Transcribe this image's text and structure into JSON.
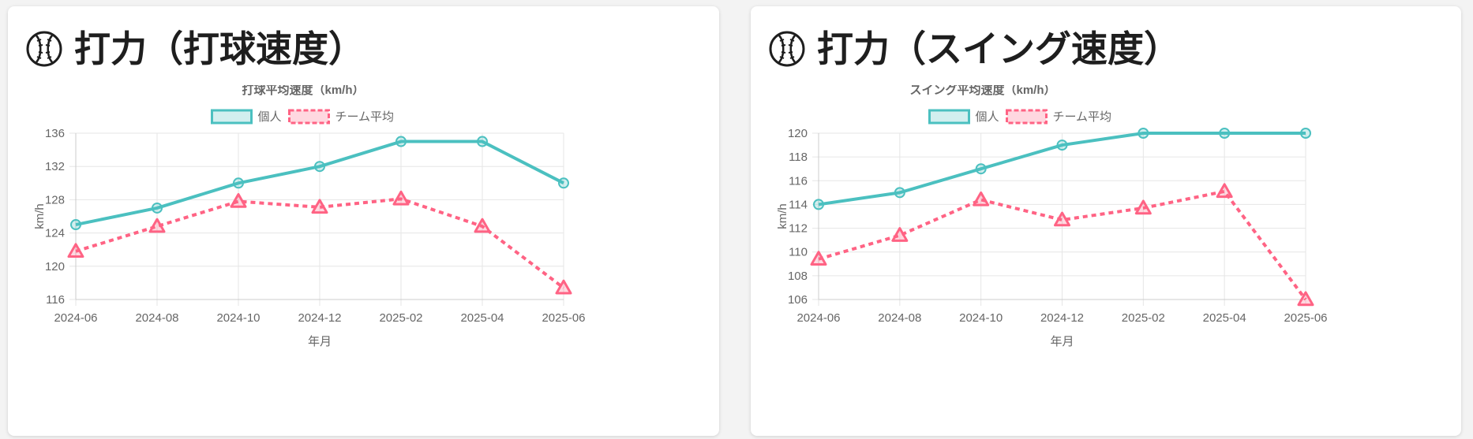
{
  "cards": [
    {
      "title": "打力（打球速度）",
      "icon": "baseball-icon"
    },
    {
      "title": "打力（スイング速度）",
      "icon": "baseball-icon"
    }
  ],
  "chart_data": [
    {
      "type": "line",
      "title": "打球平均速度（km/h）",
      "xlabel": "年月",
      "ylabel": "km/h",
      "categories": [
        "2024-06",
        "2024-08",
        "2024-10",
        "2024-12",
        "2025-02",
        "2025-04",
        "2025-06"
      ],
      "ylim": [
        116,
        136
      ],
      "yticks": [
        116,
        120,
        124,
        128,
        132,
        136
      ],
      "grid": true,
      "legend": "top",
      "series": [
        {
          "name": "個人",
          "values": [
            125,
            127,
            130,
            132,
            135,
            135,
            130
          ],
          "color": "#4bc0c0",
          "style": "solid",
          "marker": "circle"
        },
        {
          "name": "チーム平均",
          "values": [
            121.8,
            124.8,
            127.8,
            127.1,
            128.1,
            124.8,
            117.4
          ],
          "color": "#ff6384",
          "style": "dashed",
          "marker": "triangle"
        }
      ]
    },
    {
      "type": "line",
      "title": "スイング平均速度（km/h）",
      "xlabel": "年月",
      "ylabel": "km/h",
      "categories": [
        "2024-06",
        "2024-08",
        "2024-10",
        "2024-12",
        "2025-02",
        "2025-04",
        "2025-06"
      ],
      "ylim": [
        106,
        120
      ],
      "yticks": [
        106,
        108,
        110,
        112,
        114,
        116,
        118,
        120
      ],
      "grid": true,
      "legend": "top",
      "series": [
        {
          "name": "個人",
          "values": [
            114,
            115,
            117,
            119,
            120,
            120,
            120
          ],
          "color": "#4bc0c0",
          "style": "solid",
          "marker": "circle"
        },
        {
          "name": "チーム平均",
          "values": [
            109.4,
            111.4,
            114.4,
            112.7,
            113.7,
            115.1,
            106.0
          ],
          "color": "#ff6384",
          "style": "dashed",
          "marker": "triangle"
        }
      ]
    }
  ]
}
